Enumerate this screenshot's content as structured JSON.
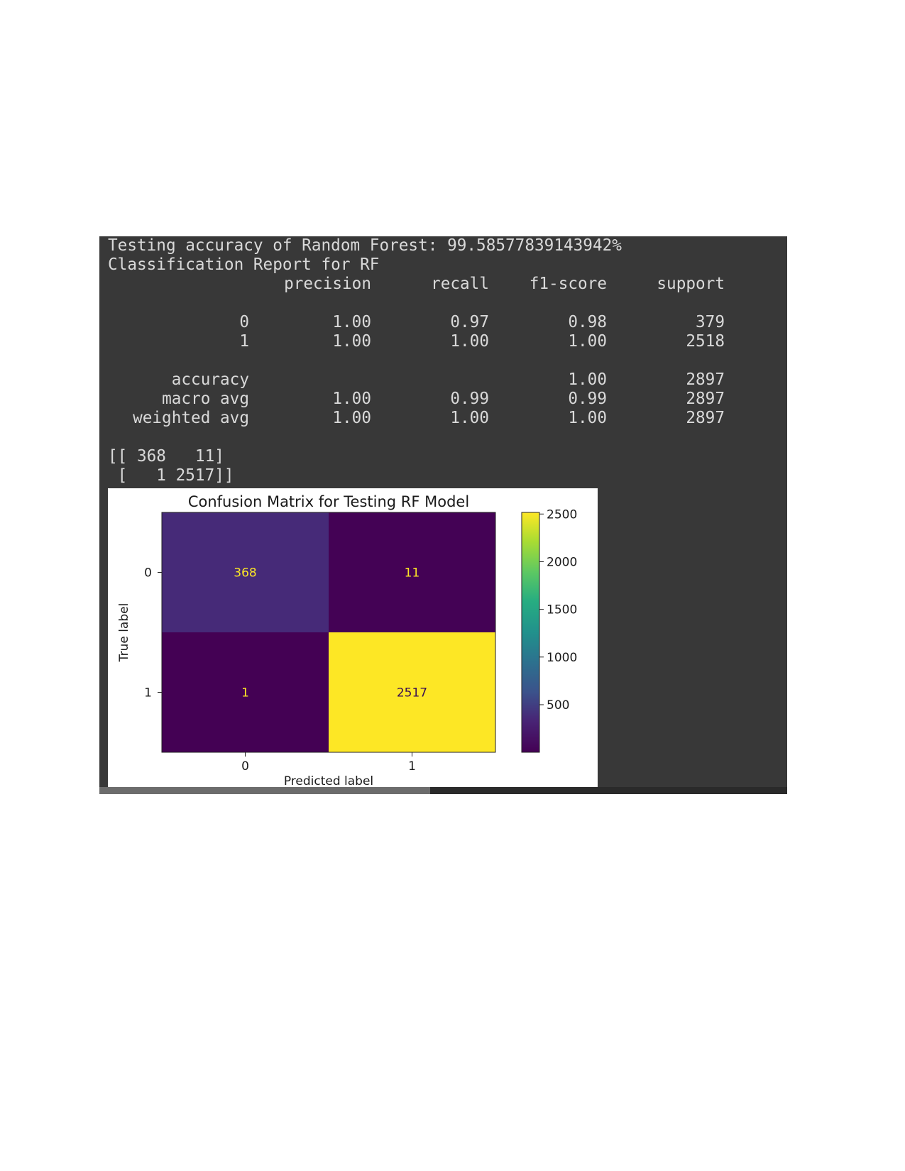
{
  "output": {
    "accuracy_line": "Testing accuracy of Random Forest: 99.58577839143942%",
    "report_title": "Classification Report for RF",
    "report": {
      "columns": [
        "precision",
        "recall",
        "f1-score",
        "support"
      ],
      "rows": [
        {
          "label": "0",
          "values": [
            "1.00",
            "0.97",
            "0.98",
            "379"
          ]
        },
        {
          "label": "1",
          "values": [
            "1.00",
            "1.00",
            "1.00",
            "2518"
          ]
        }
      ],
      "summary": [
        {
          "label": "accuracy",
          "values": [
            "",
            "",
            "1.00",
            "2897"
          ]
        },
        {
          "label": "macro avg",
          "values": [
            "1.00",
            "0.99",
            "0.99",
            "2897"
          ]
        },
        {
          "label": "weighted avg",
          "values": [
            "1.00",
            "1.00",
            "1.00",
            "2897"
          ]
        }
      ]
    },
    "matrix_lines": [
      "[[ 368   11]",
      " [   1 2517]]"
    ]
  },
  "chart_data": {
    "type": "heatmap",
    "title": "Confusion Matrix for Testing RF Model",
    "xlabel": "Predicted label",
    "ylabel": "True label",
    "x_categories": [
      "0",
      "1"
    ],
    "y_categories": [
      "0",
      "1"
    ],
    "values": [
      [
        368,
        11
      ],
      [
        1,
        2517
      ]
    ],
    "colormap": "viridis",
    "colorbar": {
      "range": [
        1,
        2517
      ],
      "ticks": [
        500,
        1000,
        1500,
        2000,
        2500
      ]
    },
    "colors": {
      "cell_0_0": "#472d7b",
      "cell_0_1": "#440154",
      "cell_1_0": "#440154",
      "cell_1_1": "#fde725",
      "annotation_dark": "#fde725",
      "annotation_light": "#3b0f52"
    }
  }
}
